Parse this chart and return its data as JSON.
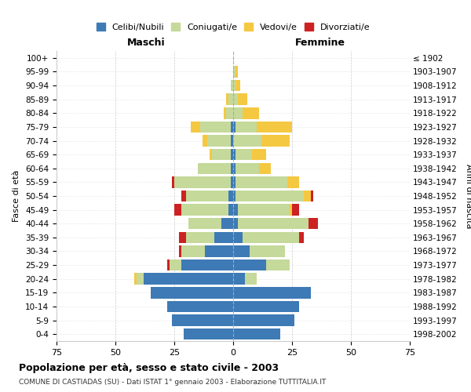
{
  "age_groups": [
    "0-4",
    "5-9",
    "10-14",
    "15-19",
    "20-24",
    "25-29",
    "30-34",
    "35-39",
    "40-44",
    "45-49",
    "50-54",
    "55-59",
    "60-64",
    "65-69",
    "70-74",
    "75-79",
    "80-84",
    "85-89",
    "90-94",
    "95-99",
    "100+"
  ],
  "birth_years": [
    "1998-2002",
    "1993-1997",
    "1988-1992",
    "1983-1987",
    "1978-1982",
    "1973-1977",
    "1968-1972",
    "1963-1967",
    "1958-1962",
    "1953-1957",
    "1948-1952",
    "1943-1947",
    "1938-1942",
    "1933-1937",
    "1928-1932",
    "1923-1927",
    "1918-1922",
    "1913-1917",
    "1908-1912",
    "1903-1907",
    "≤ 1902"
  ],
  "male": {
    "celibe": [
      21,
      26,
      28,
      35,
      38,
      22,
      12,
      8,
      5,
      2,
      2,
      1,
      1,
      1,
      1,
      1,
      0,
      0,
      0,
      0,
      0
    ],
    "coniugato": [
      0,
      0,
      0,
      0,
      3,
      5,
      10,
      12,
      14,
      20,
      18,
      24,
      14,
      8,
      10,
      13,
      3,
      2,
      1,
      0,
      0
    ],
    "vedovo": [
      0,
      0,
      0,
      0,
      1,
      0,
      0,
      0,
      0,
      0,
      0,
      0,
      0,
      1,
      2,
      4,
      1,
      1,
      0,
      0,
      0
    ],
    "divorziato": [
      0,
      0,
      0,
      0,
      0,
      1,
      1,
      3,
      0,
      3,
      2,
      1,
      0,
      0,
      0,
      0,
      0,
      0,
      0,
      0,
      0
    ]
  },
  "female": {
    "nubile": [
      20,
      26,
      28,
      33,
      5,
      14,
      7,
      4,
      2,
      2,
      1,
      1,
      1,
      1,
      0,
      1,
      0,
      0,
      0,
      0,
      0
    ],
    "coniugata": [
      0,
      0,
      0,
      0,
      5,
      10,
      15,
      24,
      30,
      22,
      29,
      22,
      10,
      7,
      12,
      9,
      4,
      2,
      1,
      1,
      0
    ],
    "vedova": [
      0,
      0,
      0,
      0,
      0,
      0,
      0,
      0,
      0,
      1,
      3,
      5,
      5,
      6,
      12,
      15,
      7,
      4,
      2,
      1,
      0
    ],
    "divorziata": [
      0,
      0,
      0,
      0,
      0,
      0,
      0,
      2,
      4,
      3,
      1,
      0,
      0,
      0,
      0,
      0,
      0,
      0,
      0,
      0,
      0
    ]
  },
  "colors": {
    "celibe": "#3e7ab5",
    "coniugato": "#c5d99a",
    "vedovo": "#f5c842",
    "divorziato": "#cc2222"
  },
  "legend_labels": [
    "Celibi/Nubili",
    "Coniugati/e",
    "Vedovi/e",
    "Divorziati/e"
  ],
  "title": "Popolazione per età, sesso e stato civile - 2003",
  "subtitle": "COMUNE DI CASTIADAS (SU) - Dati ISTAT 1° gennaio 2003 - Elaborazione TUTTITALIA.IT",
  "xlabel_left": "Maschi",
  "xlabel_right": "Femmine",
  "ylabel_left": "Fasce di età",
  "ylabel_right": "Anni di nascita",
  "xlim": 75,
  "background_color": "#ffffff",
  "grid_color": "#cccccc"
}
